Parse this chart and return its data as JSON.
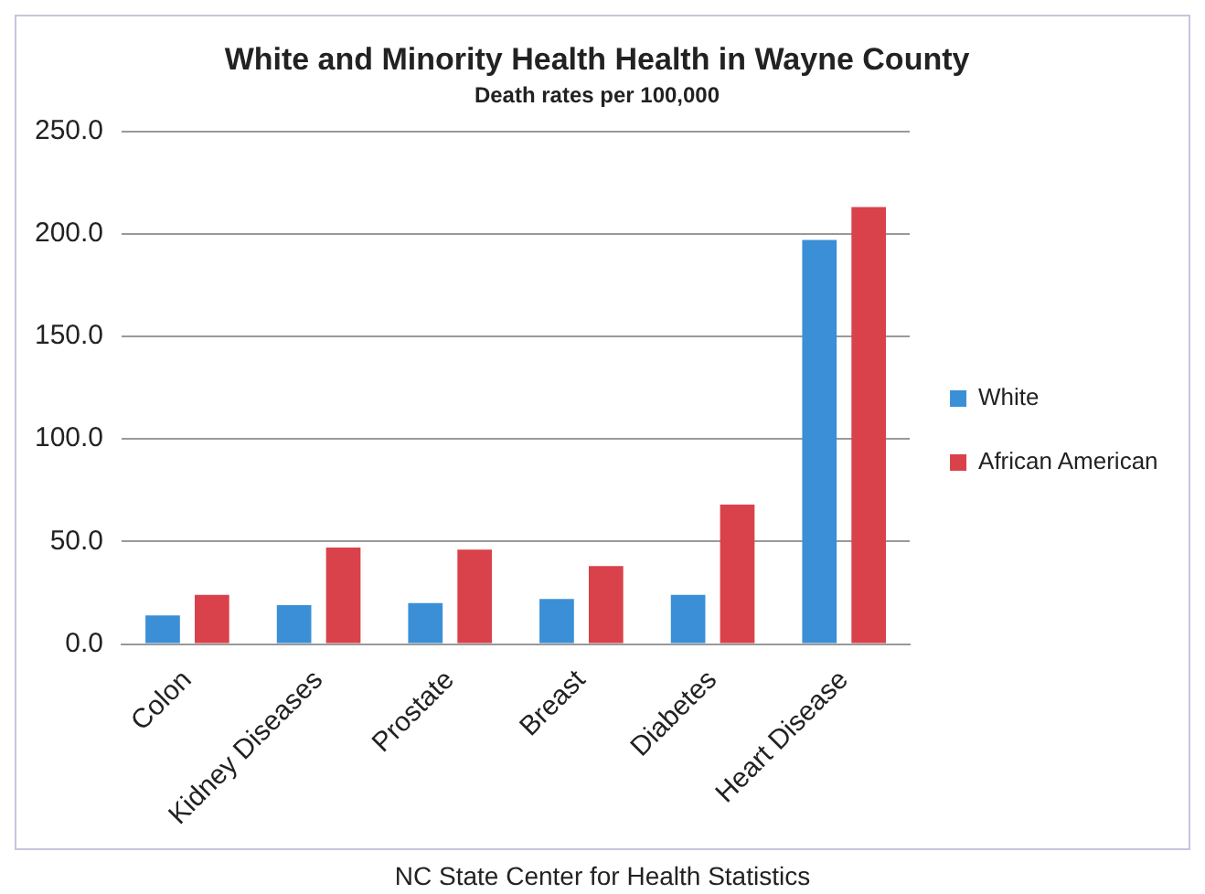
{
  "chart_data": {
    "type": "bar",
    "title": "White and Minority Health Health in Wayne County",
    "subtitle": "Death rates per 100,000",
    "categories": [
      "Colon",
      "Kidney Diseases",
      "Prostate",
      "Breast",
      "Diabetes",
      "Heart Disease"
    ],
    "series": [
      {
        "name": "White",
        "color": "#3b8fd6",
        "values": [
          14,
          19,
          20,
          22,
          24,
          197
        ]
      },
      {
        "name": "African American",
        "color": "#d9424a",
        "values": [
          24,
          47,
          46,
          38,
          68,
          213
        ]
      }
    ],
    "ylim": [
      0,
      250
    ],
    "yticks": [
      {
        "value": 0,
        "label": "0.0"
      },
      {
        "value": 50,
        "label": "50.0"
      },
      {
        "value": 100,
        "label": "100.0"
      },
      {
        "value": 150,
        "label": "150.0"
      },
      {
        "value": 200,
        "label": "200.0"
      },
      {
        "value": 250,
        "label": "250.0"
      }
    ],
    "grid": "y",
    "legend": "right",
    "annotations": [
      "NC State Center for Health Statistics"
    ]
  }
}
